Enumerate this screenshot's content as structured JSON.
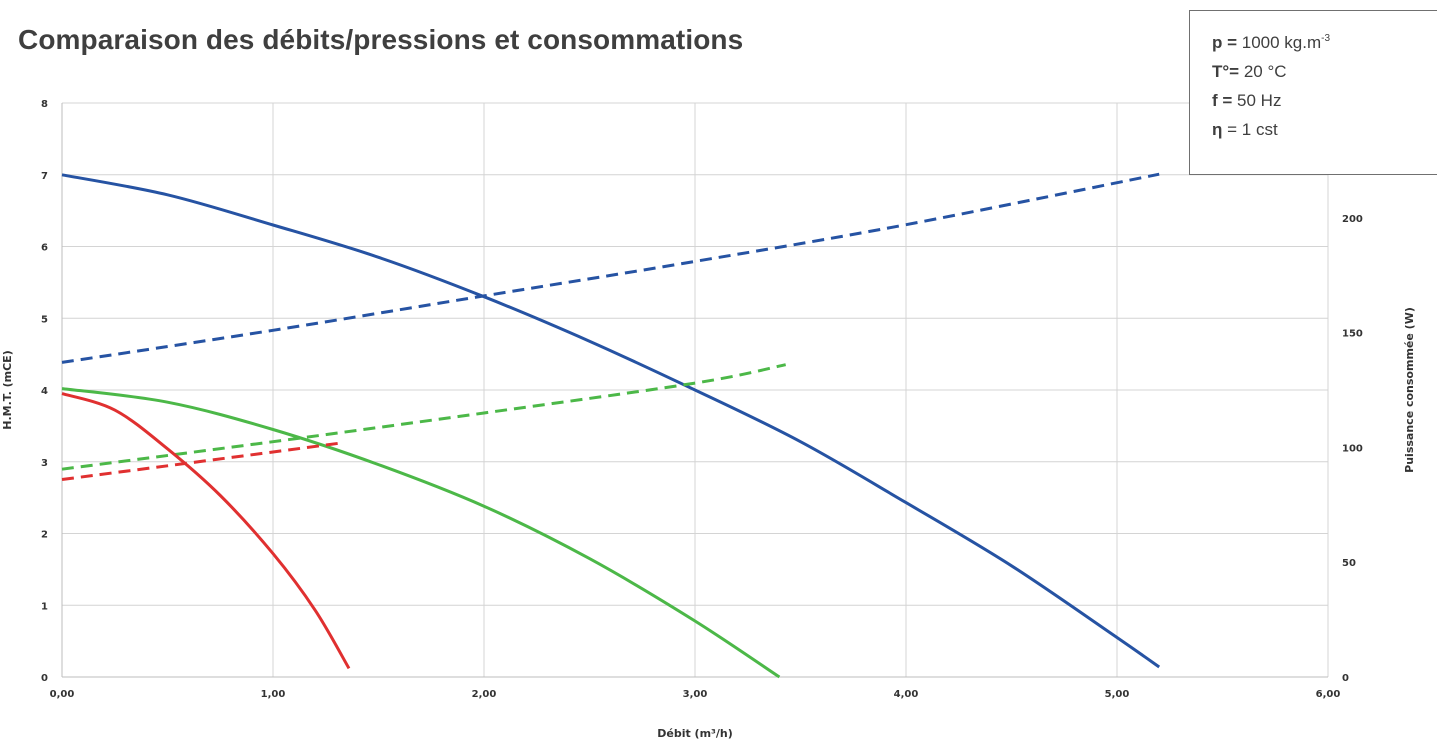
{
  "title": "Comparaison des débits/pressions et consommations",
  "conditions": [
    {
      "label": "p =",
      "value": " 1000 kg.m",
      "sup": "-3"
    },
    {
      "label": "T°=",
      "value": " 20 °C",
      "sup": ""
    },
    {
      "label": "f =",
      "value": " 50 Hz",
      "sup": ""
    },
    {
      "label": "η",
      "value": " = 1 cst",
      "sup": ""
    }
  ],
  "chart_data": {
    "type": "line",
    "xlabel": "Débit (m³/h)",
    "ylabel_left": "H.M.T. (mCE)",
    "ylabel_right": "Puissance consommée (W)",
    "xlim": [
      0,
      6
    ],
    "ylim_left": [
      0,
      8
    ],
    "ylim_right": [
      0,
      250
    ],
    "x_ticks": [
      "0,00",
      "1,00",
      "2,00",
      "3,00",
      "4,00",
      "5,00",
      "6,00"
    ],
    "y_left_ticks": [
      "0",
      "1",
      "2",
      "3",
      "4",
      "5",
      "6",
      "7",
      "8"
    ],
    "y_right_ticks": [
      "0",
      "50",
      "100",
      "150",
      "200"
    ],
    "grid": true,
    "colors": {
      "blue": "#2653a3",
      "green": "#4cb848",
      "red": "#e03030",
      "grid": "#d4d4d4",
      "text": "#333333"
    },
    "series": [
      {
        "color": "blue",
        "axis": "left",
        "style": "solid",
        "x": [
          0,
          0.5,
          1.0,
          1.5,
          2.0,
          2.5,
          3.0,
          3.5,
          4.0,
          4.5,
          5.0,
          5.2
        ],
        "y": [
          7.0,
          6.72,
          6.3,
          5.85,
          5.3,
          4.68,
          4.0,
          3.28,
          2.43,
          1.55,
          0.55,
          0.14
        ]
      },
      {
        "color": "blue",
        "axis": "right",
        "style": "dashed",
        "x": [
          0,
          1.0,
          2.0,
          3.0,
          4.0,
          5.2
        ],
        "y": [
          137,
          151,
          166,
          181,
          197,
          219
        ]
      },
      {
        "color": "green",
        "axis": "left",
        "style": "solid",
        "x": [
          0,
          0.5,
          1.0,
          1.5,
          2.0,
          2.5,
          3.0,
          3.4
        ],
        "y": [
          4.02,
          3.83,
          3.45,
          2.96,
          2.38,
          1.65,
          0.78,
          0.0
        ]
      },
      {
        "color": "green",
        "axis": "right",
        "style": "dashed",
        "x": [
          0,
          1.0,
          2.0,
          3.0,
          3.43
        ],
        "y": [
          90.5,
          102.5,
          115,
          128,
          136
        ]
      },
      {
        "color": "red",
        "axis": "left",
        "style": "solid",
        "x": [
          0,
          0.25,
          0.5,
          0.75,
          1.0,
          1.2,
          1.36
        ],
        "y": [
          3.95,
          3.72,
          3.18,
          2.53,
          1.72,
          0.93,
          0.12
        ]
      },
      {
        "color": "red",
        "axis": "right",
        "style": "dashed",
        "x": [
          0,
          0.5,
          1.0,
          1.33
        ],
        "y": [
          86,
          92,
          98,
          102
        ]
      }
    ]
  }
}
